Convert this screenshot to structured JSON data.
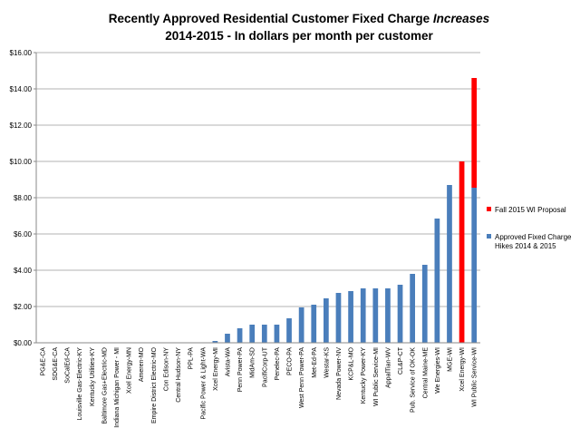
{
  "chart_data": {
    "type": "bar",
    "stacked": true,
    "title_line1": "Recently Approved Residential Customer Fixed Charge ",
    "title_line1_italic": "Increases",
    "title_line2": "2014-2015 - In dollars per month per customer",
    "ylim": [
      0,
      16
    ],
    "yticks": [
      "$0.00",
      "$2.00",
      "$4.00",
      "$6.00",
      "$8.00",
      "$10.00",
      "$12.00",
      "$14.00",
      "$16.00"
    ],
    "grid": true,
    "legend_position": "right",
    "categories": [
      "PG&E-CA",
      "SDG&E-CA",
      "SoCalEd-CA",
      "Louisville Gas-Electric-KY",
      "Kentucky Utilities-KY",
      "Baltimore Gas+Electric-MD",
      "Indiana Michigan Power - MI",
      "Xcel Energy-MN",
      "Ameren-MO",
      "Empire District Electric-MO",
      "Con Edison-NY",
      "Central Hudson-NY",
      "PPL-PA",
      "Pacific Power & Light-WA",
      "Xcel Energy-MI",
      "Avista-WA",
      "Penn Power-PA",
      "MidAm-SD",
      "PacifiCorp-UT",
      "Penelec-PA",
      "PECO-PA",
      "West Penn Power-PA",
      "Met-Ed-PA",
      "Westar-KS",
      "Nevada Power-NV",
      "KCP&L-MO",
      "Kentucky Power-KY",
      "WI Public Service-MI",
      "AppalTian-WV",
      "CL&P-CT",
      "Pub. Service of OK-OK",
      "Central Maine-ME",
      "We Energies-WI",
      "MGE-WI",
      "Xcel Energy-WI",
      "WI Public Service-WI"
    ],
    "series": [
      {
        "name": "Approved Fixed Charge Hikes 2014 & 2015",
        "color": "#4a7ebb",
        "values": [
          0,
          0,
          0,
          0,
          0,
          0,
          0,
          0,
          0,
          0,
          0,
          0,
          0,
          0,
          0.1,
          0.5,
          0.8,
          1.0,
          1.0,
          1.0,
          1.35,
          1.95,
          2.1,
          2.45,
          2.75,
          2.85,
          3.0,
          3.0,
          3.0,
          3.2,
          3.8,
          4.3,
          6.85,
          8.7,
          0,
          8.55
        ]
      },
      {
        "name": "Fall 2015 WI Proposal",
        "color": "#ff0000",
        "values": [
          0,
          0,
          0,
          0,
          0,
          0,
          0,
          0,
          0,
          0,
          0,
          0,
          0,
          0,
          0,
          0,
          0,
          0,
          0,
          0,
          0,
          0,
          0,
          0,
          0,
          0,
          0,
          0,
          0,
          0,
          0,
          0,
          0,
          0,
          10.0,
          6.05
        ]
      }
    ],
    "legend": [
      {
        "label_lines": [
          "Fall 2015 WI Proposal"
        ],
        "color": "#ff0000"
      },
      {
        "label_lines": [
          "Approved Fixed Charge",
          "Hikes 2014 & 2015"
        ],
        "color": "#4a7ebb"
      }
    ]
  }
}
